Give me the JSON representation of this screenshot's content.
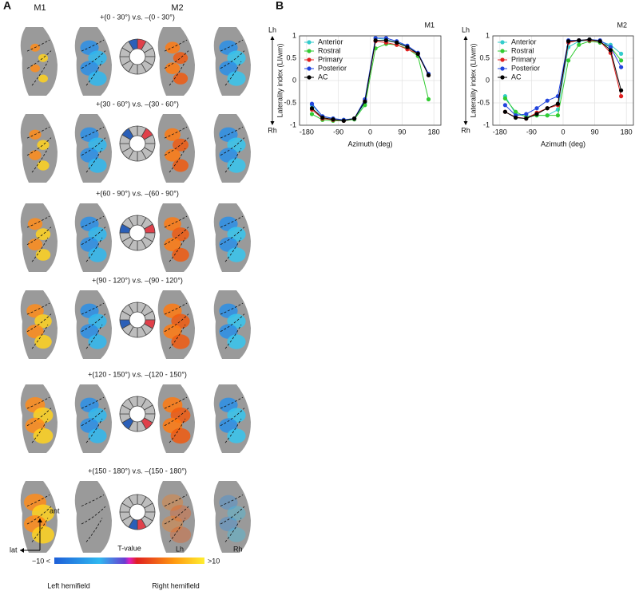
{
  "panel_a": {
    "label": "A",
    "m1": "M1",
    "m2": "M2",
    "rows": [
      "+(0 - 30°) v.s. –(0 - 30°)",
      "+(30 - 60°) v.s. –(30 - 60°)",
      "+(60 - 90°) v.s. –(60 - 90°)",
      "+(90 - 120°) v.s. –(90 - 120°)",
      "+(120 - 150°) v.s. –(120 - 150°)",
      "+(150 - 180°) v.s. –(150 - 180°)"
    ],
    "ant": "ant",
    "lat": "lat",
    "lh": "Lh",
    "rh": "Rh",
    "colorbar": {
      "title": "T-value",
      "min_label": "−10 <",
      "max_label": ">10",
      "left": "Left hemifield",
      "right": "Right hemifield"
    }
  },
  "panel_b_label": "B",
  "chart_data": [
    {
      "type": "line",
      "title": "M1",
      "x_label": "Azimuth (deg)",
      "y_label": "Laterality index (LI/wm)",
      "top_label": "Lh",
      "bottom_label": "Rh",
      "x": [
        -165,
        -135,
        -105,
        -75,
        -45,
        -15,
        15,
        45,
        75,
        105,
        135,
        165
      ],
      "xlim": [
        -200,
        200
      ],
      "xticks": [
        -180,
        -90,
        0,
        90,
        180
      ],
      "ylim": [
        -1,
        1
      ],
      "yticks": [
        -1,
        -0.5,
        0,
        0.5,
        1
      ],
      "grid": true,
      "legend": "upper-left",
      "series": [
        {
          "name": "Anterior",
          "color": "#33cccc",
          "values": [
            -0.55,
            -0.8,
            -0.85,
            -0.88,
            -0.85,
            -0.5,
            0.95,
            0.92,
            0.85,
            0.78,
            0.6,
            0.12
          ]
        },
        {
          "name": "Rostral",
          "color": "#33cc33",
          "values": [
            -0.75,
            -0.88,
            -0.9,
            -0.9,
            -0.87,
            -0.55,
            0.72,
            0.82,
            0.8,
            0.72,
            0.55,
            -0.42
          ]
        },
        {
          "name": "Primary",
          "color": "#e02020",
          "values": [
            -0.65,
            -0.85,
            -0.88,
            -0.9,
            -0.85,
            -0.45,
            0.88,
            0.85,
            0.8,
            0.7,
            0.6,
            0.12
          ]
        },
        {
          "name": "Posterior",
          "color": "#2244dd",
          "values": [
            -0.52,
            -0.8,
            -0.85,
            -0.88,
            -0.85,
            -0.42,
            0.95,
            0.95,
            0.88,
            0.78,
            0.62,
            0.15
          ]
        },
        {
          "name": "AC",
          "color": "#000000",
          "values": [
            -0.62,
            -0.83,
            -0.87,
            -0.9,
            -0.85,
            -0.47,
            0.9,
            0.9,
            0.85,
            0.75,
            0.6,
            0.12
          ]
        }
      ]
    },
    {
      "type": "line",
      "title": "M2",
      "x_label": "Azimuth (deg)",
      "y_label": "Laterality index (LI/wm)",
      "top_label": "Lh",
      "bottom_label": "Rh",
      "x": [
        -165,
        -135,
        -105,
        -75,
        -45,
        -15,
        15,
        45,
        75,
        105,
        135,
        165
      ],
      "xlim": [
        -200,
        200
      ],
      "xticks": [
        -180,
        -90,
        0,
        90,
        180
      ],
      "ylim": [
        -1,
        1
      ],
      "yticks": [
        -1,
        -0.5,
        0,
        0.5,
        1
      ],
      "grid": true,
      "legend": "upper-left",
      "series": [
        {
          "name": "Anterior",
          "color": "#33cccc",
          "values": [
            -0.35,
            -0.75,
            -0.8,
            -0.78,
            -0.78,
            -0.65,
            0.75,
            0.88,
            0.9,
            0.88,
            0.8,
            0.6
          ]
        },
        {
          "name": "Rostral",
          "color": "#33cc33",
          "values": [
            -0.4,
            -0.7,
            -0.82,
            -0.78,
            -0.78,
            -0.78,
            0.45,
            0.8,
            0.88,
            0.85,
            0.75,
            0.45
          ]
        },
        {
          "name": "Primary",
          "color": "#e02020",
          "values": [
            -0.7,
            -0.82,
            -0.85,
            -0.72,
            -0.62,
            -0.55,
            0.85,
            0.9,
            0.9,
            0.88,
            0.62,
            -0.35
          ]
        },
        {
          "name": "Posterior",
          "color": "#2244dd",
          "values": [
            -0.55,
            -0.78,
            -0.75,
            -0.62,
            -0.45,
            -0.35,
            0.9,
            0.9,
            0.92,
            0.9,
            0.75,
            0.3
          ]
        },
        {
          "name": "AC",
          "color": "#000000",
          "values": [
            -0.7,
            -0.83,
            -0.85,
            -0.75,
            -0.62,
            -0.52,
            0.88,
            0.9,
            0.92,
            0.88,
            0.68,
            -0.22
          ]
        }
      ]
    }
  ]
}
